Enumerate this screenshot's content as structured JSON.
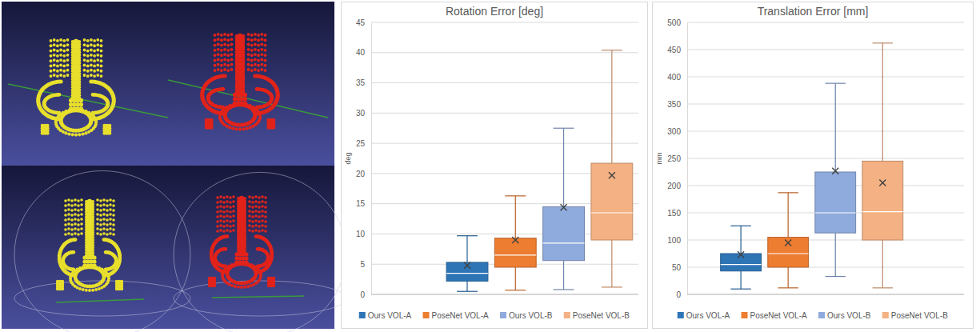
{
  "chart_data": [
    {
      "type": "box",
      "title": "Rotation Error [deg]",
      "y_label": "deg",
      "ylim": [
        0,
        45
      ],
      "yticks": [
        0,
        5,
        10,
        15,
        20,
        25,
        30,
        35,
        40,
        45
      ],
      "grid": true,
      "legend": "bottom",
      "tick_labels": "y",
      "series": [
        {
          "name": "Ours VOL-A",
          "color": "#2e75b6",
          "min": 0.5,
          "q1": 2.2,
          "median": 3.5,
          "q3": 5.3,
          "max": 9.7,
          "mean": 4.8
        },
        {
          "name": "PoseNet VOL-A",
          "color": "#ed7d31",
          "min": 0.7,
          "q1": 4.5,
          "median": 6.5,
          "q3": 9.3,
          "max": 16.3,
          "mean": 9.0
        },
        {
          "name": "Ours VOL-B",
          "color": "#8faadc",
          "min": 0.8,
          "q1": 5.6,
          "median": 8.5,
          "q3": 14.5,
          "max": 27.5,
          "mean": 14.4
        },
        {
          "name": "PoseNet VOL-B",
          "color": "#f4b183",
          "min": 1.2,
          "q1": 9.0,
          "median": 13.5,
          "q3": 21.7,
          "max": 40.4,
          "mean": 19.7
        }
      ]
    },
    {
      "type": "box",
      "title": "Translation Error [mm]",
      "y_label": "mm",
      "ylim": [
        0,
        500
      ],
      "yticks": [
        0,
        50,
        100,
        150,
        200,
        250,
        300,
        350,
        400,
        450,
        500
      ],
      "grid": true,
      "legend": "bottom",
      "tick_labels": "y",
      "series": [
        {
          "name": "Ours VOL-A",
          "color": "#2e75b6",
          "min": 10,
          "q1": 43,
          "median": 55,
          "q3": 75,
          "max": 126,
          "mean": 73
        },
        {
          "name": "PoseNet VOL-A",
          "color": "#ed7d31",
          "min": 12,
          "q1": 50,
          "median": 75,
          "q3": 105,
          "max": 187,
          "mean": 95
        },
        {
          "name": "Ours VOL-B",
          "color": "#8faadc",
          "min": 33,
          "q1": 113,
          "median": 150,
          "q3": 225,
          "max": 388,
          "mean": 227
        },
        {
          "name": "PoseNet VOL-B",
          "color": "#f4b183",
          "min": 12,
          "q1": 100,
          "median": 152,
          "q3": 245,
          "max": 462,
          "mean": 205
        }
      ]
    }
  ]
}
